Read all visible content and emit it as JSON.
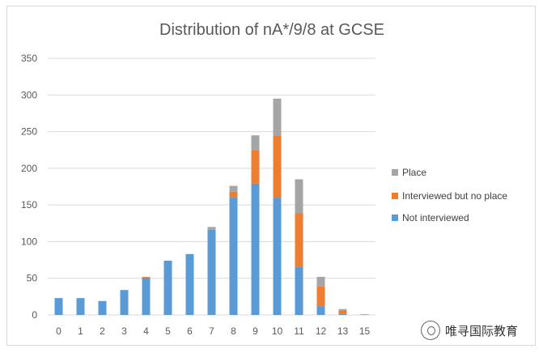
{
  "chart_data": {
    "type": "bar",
    "stacked": true,
    "title": "Distribution of nA*/9/8 at GCSE",
    "xlabel": "",
    "ylabel": "",
    "categories": [
      "0",
      "1",
      "2",
      "3",
      "4",
      "5",
      "6",
      "7",
      "8",
      "9",
      "10",
      "11",
      "12",
      "13",
      "15"
    ],
    "ylim": [
      0,
      350
    ],
    "yticks": [
      0,
      50,
      100,
      150,
      200,
      250,
      300,
      350
    ],
    "grid": true,
    "legend_position": "right",
    "series": [
      {
        "name": "Not interviewed",
        "color": "#5b9bd5",
        "values": [
          23,
          23,
          19,
          34,
          51,
          74,
          83,
          116,
          160,
          179,
          160,
          66,
          12,
          2,
          0
        ]
      },
      {
        "name": "Interviewed but no place",
        "color": "#ed7d31",
        "values": [
          0,
          0,
          0,
          0,
          1,
          0,
          0,
          0,
          8,
          46,
          84,
          73,
          27,
          4,
          0
        ]
      },
      {
        "name": "Place",
        "color": "#a5a5a5",
        "values": [
          0,
          0,
          0,
          0,
          0,
          0,
          0,
          4,
          8,
          20,
          51,
          46,
          13,
          2,
          1
        ]
      }
    ]
  },
  "watermark": {
    "text": "唯寻国际教育",
    "icon": "wechat-icon"
  }
}
